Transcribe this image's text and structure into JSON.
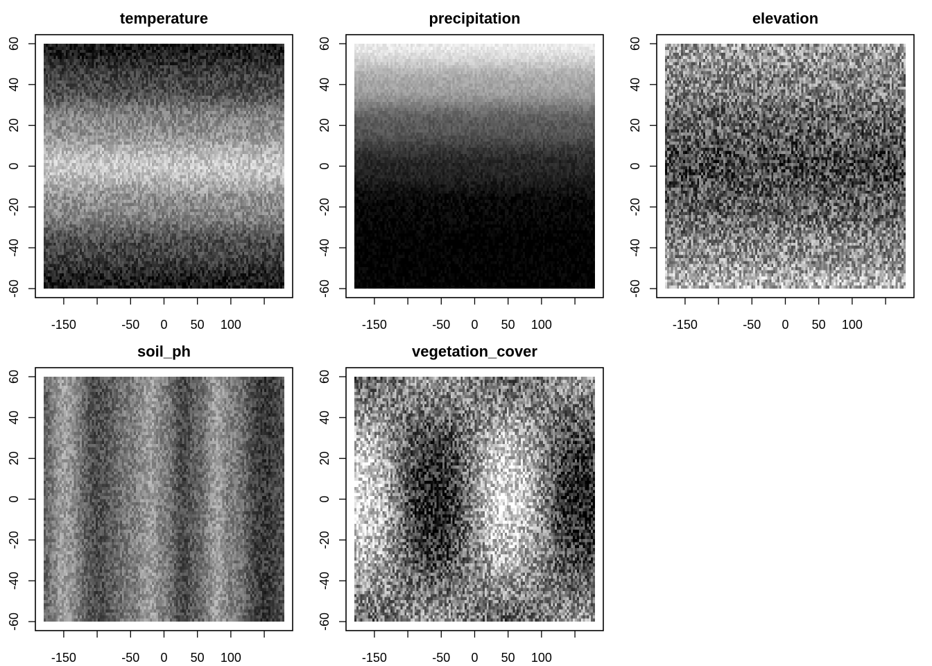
{
  "chart_data": [
    {
      "type": "heatmap",
      "title": "temperature",
      "xlabel": "",
      "ylabel": "",
      "xlim": [
        -180,
        180
      ],
      "ylim": [
        -60,
        60
      ],
      "x_ticks": [
        -150,
        -100,
        -50,
        0,
        50,
        100,
        150
      ],
      "x_tick_labels": [
        "-150",
        "",
        "-50",
        "0",
        "50",
        "100",
        ""
      ],
      "y_ticks": [
        -60,
        -40,
        -20,
        0,
        20,
        40,
        60
      ],
      "y_tick_labels": [
        "-60",
        "-40",
        "-20",
        "0",
        "20",
        "40",
        "60"
      ],
      "colormap": "grayscale",
      "grid": false,
      "pattern": "brightest along latitude 0, darkening toward latitudes ±60",
      "lat_profile": {
        "lat": [
          -60,
          -40,
          -20,
          0,
          20,
          40,
          60
        ],
        "intensity": [
          0.1,
          0.28,
          0.55,
          0.78,
          0.55,
          0.28,
          0.1
        ]
      }
    },
    {
      "type": "heatmap",
      "title": "precipitation",
      "xlabel": "",
      "ylabel": "",
      "xlim": [
        -180,
        180
      ],
      "ylim": [
        -60,
        60
      ],
      "x_ticks": [
        -150,
        -100,
        -50,
        0,
        50,
        100,
        150
      ],
      "x_tick_labels": [
        "-150",
        "",
        "-50",
        "0",
        "50",
        "100",
        ""
      ],
      "y_ticks": [
        -60,
        -40,
        -20,
        0,
        20,
        40,
        60
      ],
      "y_tick_labels": [
        "-60",
        "-40",
        "-20",
        "0",
        "20",
        "40",
        "60"
      ],
      "colormap": "grayscale",
      "grid": false,
      "pattern": "bright at latitude 60, fading to black by latitude -20 and below",
      "lat_profile": {
        "lat": [
          -60,
          -40,
          -20,
          0,
          20,
          40,
          60
        ],
        "intensity": [
          0.0,
          0.0,
          0.03,
          0.15,
          0.35,
          0.65,
          0.92
        ]
      }
    },
    {
      "type": "heatmap",
      "title": "elevation",
      "xlabel": "",
      "ylabel": "",
      "xlim": [
        -180,
        180
      ],
      "ylim": [
        -60,
        60
      ],
      "x_ticks": [
        -150,
        -100,
        -50,
        0,
        50,
        100,
        150
      ],
      "x_tick_labels": [
        "-150",
        "",
        "-50",
        "0",
        "50",
        "100",
        ""
      ],
      "y_ticks": [
        -60,
        -40,
        -20,
        0,
        20,
        40,
        60
      ],
      "y_tick_labels": [
        "-60",
        "-40",
        "-20",
        "0",
        "20",
        "40",
        "60"
      ],
      "colormap": "grayscale",
      "grid": false,
      "pattern": "noisy; darkest along latitude 0, lighter toward ±60",
      "lat_profile": {
        "lat": [
          -60,
          -40,
          -20,
          0,
          20,
          40,
          60
        ],
        "intensity": [
          0.7,
          0.55,
          0.38,
          0.28,
          0.38,
          0.52,
          0.62
        ]
      }
    },
    {
      "type": "heatmap",
      "title": "soil_ph",
      "xlabel": "",
      "ylabel": "",
      "xlim": [
        -180,
        180
      ],
      "ylim": [
        -60,
        60
      ],
      "x_ticks": [
        -150,
        -100,
        -50,
        0,
        50,
        100,
        150
      ],
      "x_tick_labels": [
        "-150",
        "",
        "-50",
        "0",
        "50",
        "100",
        ""
      ],
      "y_ticks": [
        -60,
        -40,
        -20,
        0,
        20,
        40,
        60
      ],
      "y_tick_labels": [
        "-60",
        "-40",
        "-20",
        "0",
        "20",
        "40",
        "60"
      ],
      "colormap": "grayscale",
      "grid": false,
      "pattern": "vertical bands; bright near longitudes -150, -20 and 80, dark near -100, 30 and 150",
      "lon_profile": {
        "lon": [
          -180,
          -150,
          -100,
          -50,
          -20,
          0,
          30,
          50,
          80,
          100,
          150,
          180
        ],
        "intensity": [
          0.4,
          0.62,
          0.3,
          0.48,
          0.62,
          0.5,
          0.28,
          0.4,
          0.62,
          0.5,
          0.22,
          0.3
        ]
      }
    },
    {
      "type": "heatmap",
      "title": "vegetation_cover",
      "xlabel": "",
      "ylabel": "",
      "xlim": [
        -180,
        180
      ],
      "ylim": [
        -60,
        60
      ],
      "x_ticks": [
        -150,
        -100,
        -50,
        0,
        50,
        100,
        150
      ],
      "x_tick_labels": [
        "-150",
        "",
        "-50",
        "0",
        "50",
        "100",
        ""
      ],
      "y_ticks": [
        -60,
        -40,
        -20,
        0,
        20,
        40,
        60
      ],
      "y_tick_labels": [
        "-60",
        "-40",
        "-20",
        "0",
        "20",
        "40",
        "60"
      ],
      "colormap": "grayscale",
      "grid": false,
      "pattern": "noisy diagonal checker-like pattern; bright near (-170, 0) and (50, 0), dark near (-40, 0) and at top-center / bottom-center",
      "wave": {
        "lon_period": 220,
        "lat_period": 200,
        "amplitude": 0.38,
        "base": 0.5
      }
    }
  ]
}
